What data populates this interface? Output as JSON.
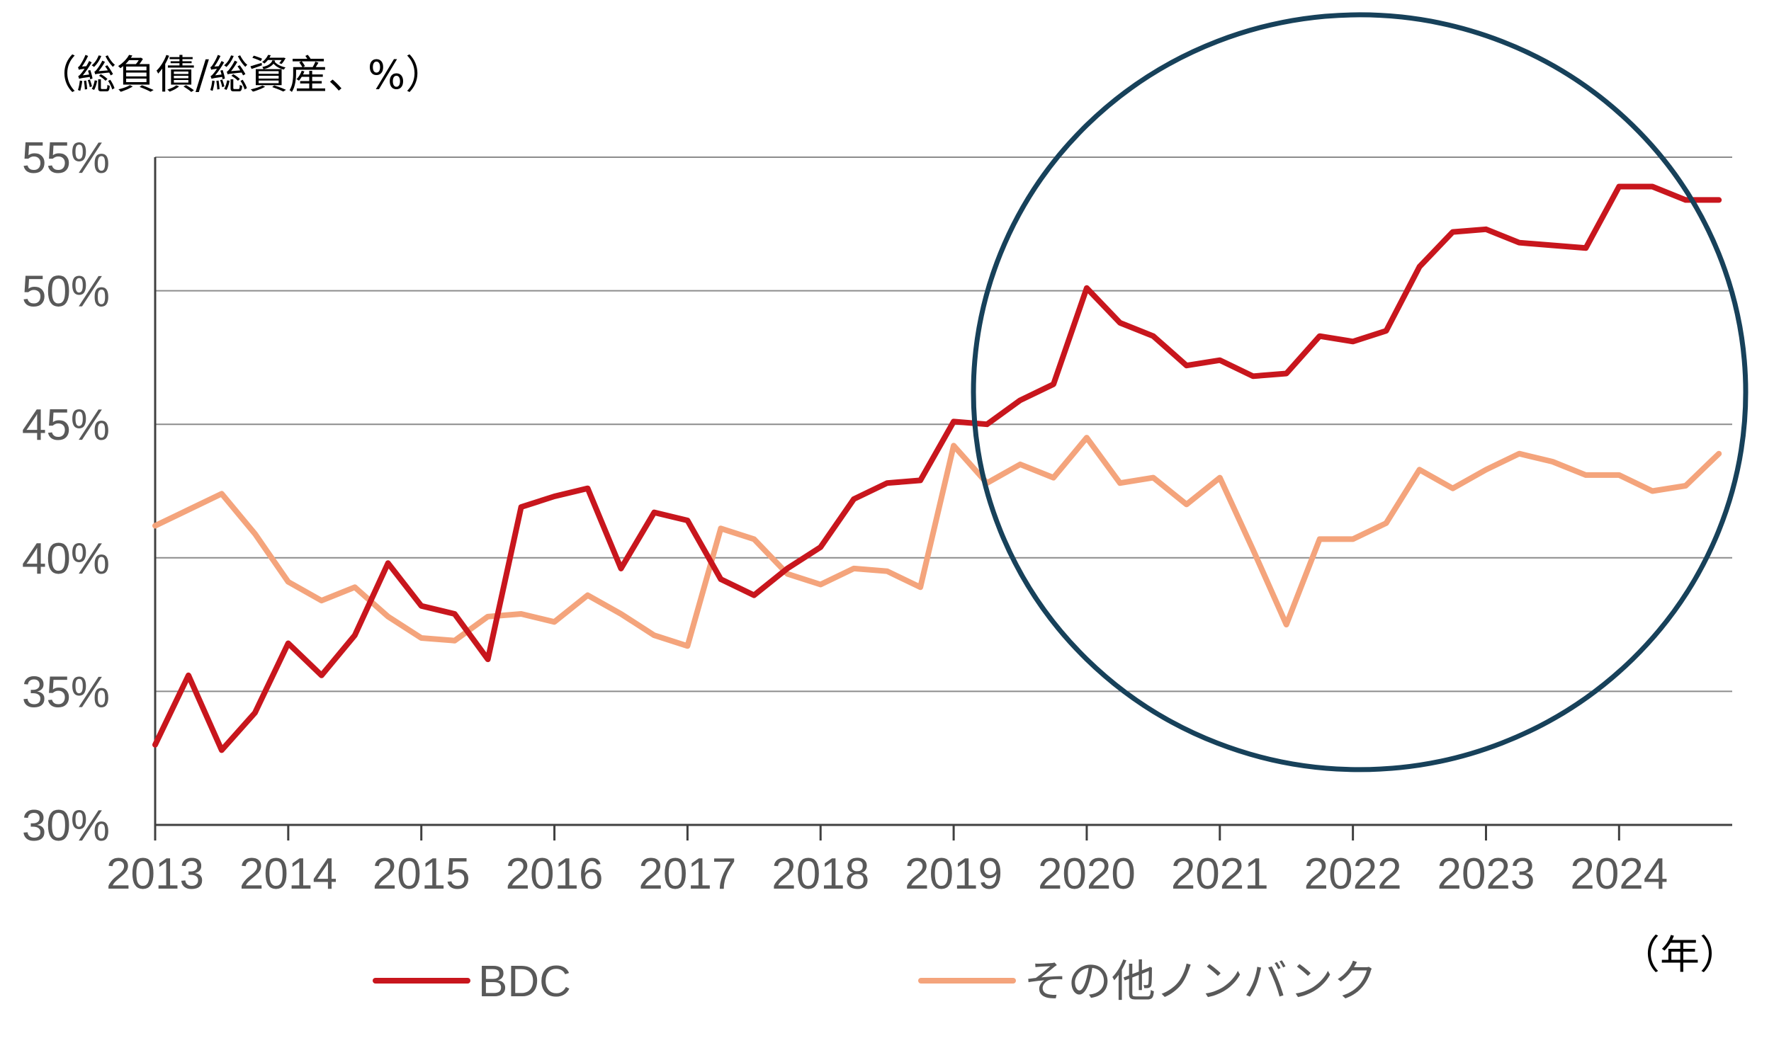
{
  "chart_data": {
    "type": "line",
    "ylabel": "（総負債/総資産、%）",
    "xlabel": "（年）",
    "ylim": [
      30,
      55
    ],
    "yticks": [
      "30%",
      "35%",
      "40%",
      "45%",
      "50%",
      "55%"
    ],
    "ytick_values": [
      30,
      35,
      40,
      45,
      50,
      55
    ],
    "xlim": [
      2013,
      2024.85
    ],
    "xticks": [
      "2013",
      "2014",
      "2015",
      "2016",
      "2017",
      "2018",
      "2019",
      "2020",
      "2021",
      "2022",
      "2023",
      "2024"
    ],
    "xtick_values": [
      2013,
      2014,
      2015,
      2016,
      2017,
      2018,
      2019,
      2020,
      2021,
      2022,
      2023,
      2024
    ],
    "grid": true,
    "x": [
      2013.0,
      2013.25,
      2013.5,
      2013.75,
      2014.0,
      2014.25,
      2014.5,
      2014.75,
      2015.0,
      2015.25,
      2015.5,
      2015.75,
      2016.0,
      2016.25,
      2016.5,
      2016.75,
      2017.0,
      2017.25,
      2017.5,
      2017.75,
      2018.0,
      2018.25,
      2018.5,
      2018.75,
      2019.0,
      2019.25,
      2019.5,
      2019.75,
      2020.0,
      2020.25,
      2020.5,
      2020.75,
      2021.0,
      2021.25,
      2021.5,
      2021.75,
      2022.0,
      2022.25,
      2022.5,
      2022.75,
      2023.0,
      2023.25,
      2023.5,
      2023.75,
      2024.0,
      2024.25,
      2024.5,
      2024.75
    ],
    "series": [
      {
        "name": "BDC",
        "color": "#c8161d",
        "values": [
          33.0,
          35.6,
          32.8,
          34.2,
          36.8,
          35.6,
          37.1,
          39.8,
          38.2,
          37.9,
          36.2,
          41.9,
          42.3,
          42.6,
          39.6,
          41.7,
          41.4,
          39.2,
          38.6,
          39.6,
          40.4,
          42.2,
          42.8,
          42.9,
          45.1,
          45.0,
          45.9,
          46.5,
          50.1,
          48.8,
          48.3,
          47.2,
          47.4,
          46.8,
          46.9,
          48.3,
          48.1,
          48.5,
          50.9,
          52.2,
          52.3,
          51.8,
          51.7,
          51.6,
          53.9,
          53.9,
          53.4,
          53.4
        ]
      },
      {
        "name": "その他ノンバンク",
        "color": "#f4a47c",
        "values": [
          41.2,
          41.8,
          42.4,
          40.9,
          39.1,
          38.4,
          38.9,
          37.8,
          37.0,
          36.9,
          37.8,
          37.9,
          37.6,
          38.6,
          37.9,
          37.1,
          36.7,
          41.1,
          40.7,
          39.4,
          39.0,
          39.6,
          39.5,
          38.9,
          44.2,
          42.8,
          43.5,
          43.0,
          44.5,
          42.8,
          43.0,
          42.0,
          43.0,
          40.3,
          37.5,
          40.7,
          40.7,
          41.3,
          43.3,
          42.6,
          43.3,
          43.9,
          43.6,
          43.1,
          43.1,
          42.5,
          42.7,
          43.9
        ]
      }
    ],
    "legend": {
      "position": "bottom"
    },
    "annotation": {
      "type": "circle",
      "color": "#17415a",
      "x_center": 2022.05,
      "y_center": 46.2
    }
  }
}
